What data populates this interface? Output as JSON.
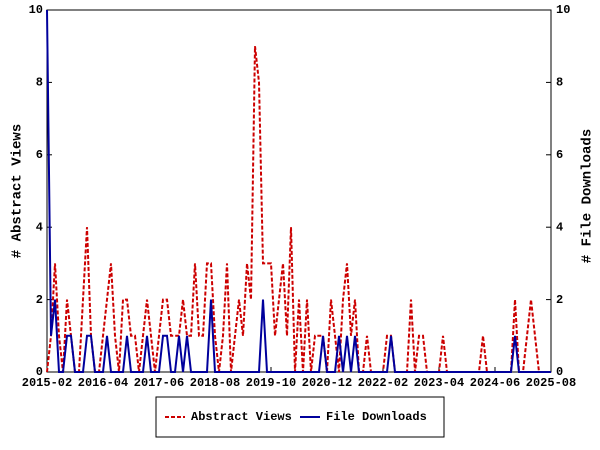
{
  "chart_data": {
    "type": "line",
    "x": [
      "2015-02",
      "2015-03",
      "2015-04",
      "2015-05",
      "2015-06",
      "2015-07",
      "2015-08",
      "2015-09",
      "2015-10",
      "2015-11",
      "2015-12",
      "2016-01",
      "2016-02",
      "2016-03",
      "2016-04",
      "2016-05",
      "2016-06",
      "2016-07",
      "2016-08",
      "2016-09",
      "2016-10",
      "2016-11",
      "2016-12",
      "2017-01",
      "2017-02",
      "2017-03",
      "2017-04",
      "2017-05",
      "2017-06",
      "2017-07",
      "2017-08",
      "2017-09",
      "2017-10",
      "2017-11",
      "2017-12",
      "2018-01",
      "2018-02",
      "2018-03",
      "2018-04",
      "2018-05",
      "2018-06",
      "2018-07",
      "2018-08",
      "2018-09",
      "2018-10",
      "2018-11",
      "2018-12",
      "2019-01",
      "2019-02",
      "2019-03",
      "2019-04",
      "2019-05",
      "2019-06",
      "2019-07",
      "2019-08",
      "2019-09",
      "2019-10",
      "2019-11",
      "2019-12",
      "2020-01",
      "2020-02",
      "2020-03",
      "2020-04",
      "2020-05",
      "2020-06",
      "2020-07",
      "2020-08",
      "2020-09",
      "2020-10",
      "2020-11",
      "2020-12",
      "2021-01",
      "2021-02",
      "2021-03",
      "2021-04",
      "2021-05",
      "2021-06",
      "2021-07",
      "2021-08",
      "2021-09",
      "2021-10",
      "2021-11",
      "2021-12",
      "2022-01",
      "2022-02",
      "2022-03",
      "2022-04",
      "2022-05",
      "2022-06",
      "2022-07",
      "2022-08",
      "2022-09",
      "2022-10",
      "2022-11",
      "2022-12",
      "2023-01",
      "2023-02",
      "2023-03",
      "2023-04",
      "2023-05",
      "2023-06",
      "2023-07",
      "2023-08",
      "2023-09",
      "2023-10",
      "2023-11",
      "2023-12",
      "2024-01",
      "2024-02",
      "2024-03",
      "2024-04",
      "2024-05",
      "2024-06",
      "2024-07",
      "2024-08",
      "2024-09",
      "2024-10",
      "2024-11",
      "2024-12",
      "2025-01",
      "2025-02",
      "2025-03",
      "2025-04",
      "2025-05",
      "2025-06",
      "2025-07",
      "2025-08"
    ],
    "xticks": [
      "2015-02",
      "2016-04",
      "2017-06",
      "2018-08",
      "2019-10",
      "2020-12",
      "2022-02",
      "2023-04",
      "2024-06",
      "2025-08"
    ],
    "ylabel": "# Abstract Views",
    "y2label": "# File Downloads",
    "ylim": [
      0,
      10
    ],
    "yticks": [
      0,
      2,
      4,
      6,
      8,
      10
    ],
    "y2lim": [
      0,
      10
    ],
    "y2ticks": [
      0,
      2,
      4,
      6,
      8,
      10
    ],
    "series": [
      {
        "name": "Abstract Views",
        "color": "#cc0000",
        "dashed": true,
        "values": [
          0,
          1,
          3,
          1,
          0,
          2,
          1,
          0,
          0,
          2,
          4,
          1,
          0,
          0,
          1,
          2,
          3,
          1,
          0,
          2,
          2,
          1,
          1,
          0,
          1,
          2,
          1,
          0,
          1,
          2,
          2,
          1,
          1,
          1,
          2,
          1,
          1,
          3,
          1,
          1,
          3,
          3,
          1,
          0,
          1,
          3,
          0,
          1,
          2,
          1,
          3,
          2,
          9,
          8,
          3,
          3,
          3,
          1,
          2,
          3,
          1,
          4,
          0,
          2,
          0,
          2,
          0,
          1,
          1,
          1,
          0,
          2,
          1,
          0,
          2,
          3,
          1,
          2,
          0,
          0,
          1,
          0,
          0,
          0,
          0,
          1,
          1,
          0,
          0,
          0,
          0,
          2,
          0,
          1,
          1,
          0,
          0,
          0,
          0,
          1,
          0,
          0,
          0,
          0,
          0,
          0,
          0,
          0,
          0,
          1,
          0,
          0,
          0,
          0,
          0,
          0,
          0,
          2,
          0,
          0,
          1,
          2,
          1,
          0,
          0,
          0,
          0
        ]
      },
      {
        "name": "File Downloads",
        "color": "#00009c",
        "dashed": false,
        "axis": "y2",
        "values": [
          10,
          1,
          2,
          0,
          0,
          1,
          1,
          0,
          0,
          0,
          1,
          1,
          0,
          0,
          0,
          1,
          0,
          0,
          0,
          0,
          1,
          0,
          0,
          0,
          0,
          1,
          0,
          0,
          0,
          1,
          1,
          0,
          0,
          1,
          0,
          1,
          0,
          0,
          0,
          0,
          0,
          2,
          0,
          0,
          0,
          0,
          0,
          0,
          0,
          0,
          0,
          0,
          0,
          0,
          2,
          0,
          0,
          0,
          0,
          0,
          0,
          0,
          0,
          0,
          0,
          0,
          0,
          0,
          0,
          1,
          0,
          0,
          0,
          1,
          0,
          1,
          0,
          1,
          0,
          0,
          0,
          0,
          0,
          0,
          0,
          0,
          1,
          0,
          0,
          0,
          0,
          0,
          0,
          0,
          0,
          0,
          0,
          0,
          0,
          0,
          0,
          0,
          0,
          0,
          0,
          0,
          0,
          0,
          0,
          0,
          0,
          0,
          0,
          0,
          0,
          0,
          0,
          1,
          0,
          0,
          0,
          0,
          0,
          0,
          0,
          0,
          0
        ]
      }
    ]
  }
}
